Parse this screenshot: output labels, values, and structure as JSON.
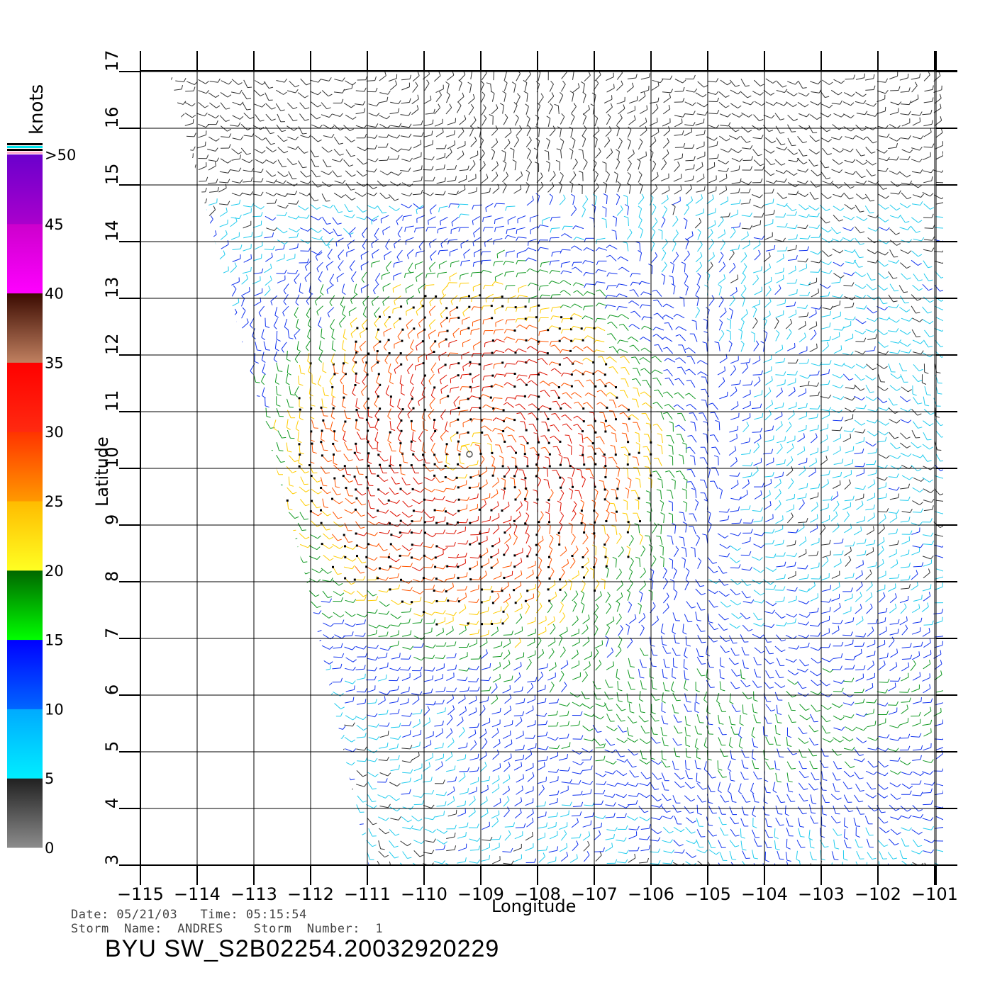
{
  "map": {
    "title_id": "BYU  SW_S2B02254.20032920229",
    "date_line": "Date: 05/21/03   Time: 05:15:54",
    "storm_line": "Storm  Name:  ANDRES    Storm  Number:  1",
    "xlabel": "Longitude",
    "ylabel": "Latitude",
    "lon_ticks": [
      -115,
      -114,
      -113,
      -112,
      -111,
      -110,
      -109,
      -108,
      -107,
      -106,
      -105,
      -104,
      -103,
      -102,
      -101
    ],
    "lon_tick_labels": [
      "−115",
      "−114",
      "−113",
      "−112",
      "−111",
      "−110",
      "−109",
      "−108",
      "−107",
      "−106",
      "−105",
      "−104",
      "−103",
      "−102",
      "−101"
    ],
    "lat_ticks": [
      3,
      4,
      5,
      6,
      7,
      8,
      9,
      10,
      11,
      12,
      13,
      14,
      15,
      16,
      17
    ],
    "lat_range": [
      3,
      17
    ],
    "lon_range": [
      -115,
      -100.5
    ],
    "storm_center": {
      "lon": -109.2,
      "lat": 10.25
    },
    "grid": true
  },
  "colorbar": {
    "title": "knots",
    "labels": [
      "0",
      "5",
      "10",
      "15",
      "20",
      "25",
      "30",
      "35",
      "40",
      "45",
      ">50"
    ],
    "bands": [
      {
        "from": 0,
        "to": 5,
        "top": "#202020",
        "bottom": "#8c8c8c"
      },
      {
        "from": 5,
        "to": 10,
        "top": "#00aaff",
        "bottom": "#00eeff"
      },
      {
        "from": 10,
        "to": 15,
        "top": "#0000ff",
        "bottom": "#0066ff"
      },
      {
        "from": 15,
        "to": 20,
        "top": "#006600",
        "bottom": "#00ff00"
      },
      {
        "from": 20,
        "to": 25,
        "top": "#ffbb00",
        "bottom": "#ffff22"
      },
      {
        "from": 25,
        "to": 30,
        "top": "#ff3300",
        "bottom": "#ff9900"
      },
      {
        "from": 30,
        "to": 35,
        "top": "#ff0000",
        "bottom": "#ff2a10"
      },
      {
        "from": 35,
        "to": 40,
        "top": "#3a0a00",
        "bottom": "#c08060"
      },
      {
        "from": 40,
        "to": 45,
        "top": "#cc00cc",
        "bottom": "#ff00ff"
      },
      {
        "from": 45,
        "to": 50,
        "top": "#6a00cc",
        "bottom": "#aa00cc"
      }
    ],
    "cap_colors": [
      "#000000",
      "#00e5ee",
      "#000000",
      "#ffaacc"
    ]
  }
}
